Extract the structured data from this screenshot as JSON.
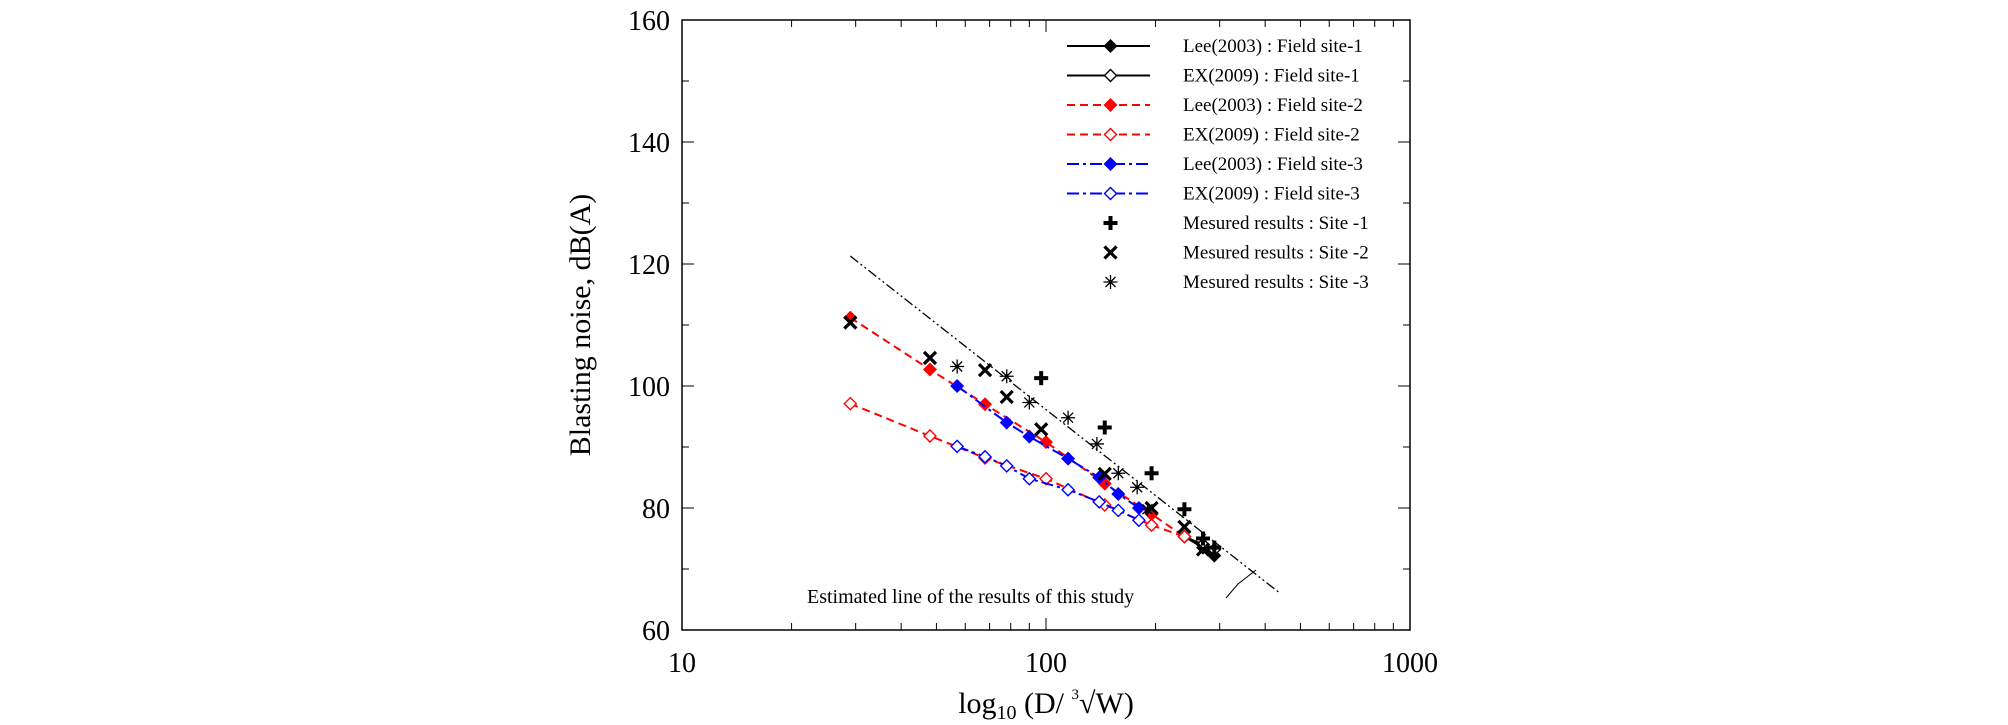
{
  "chart_data": {
    "type": "line",
    "xscale": "log",
    "xlim": [
      10,
      1000
    ],
    "ylim": [
      60,
      160
    ],
    "x_ticks": [
      "10",
      "100",
      "1000"
    ],
    "y_ticks": [
      "60",
      "80",
      "100",
      "120",
      "140",
      "160"
    ],
    "xlabel": {
      "prefix": "log",
      "subscript": "10",
      "body": " (D/ ",
      "root_index": "3",
      "root_sign": "√",
      "suffix": "W)"
    },
    "ylabel": "Blasting noise, dB(A)",
    "legend_position": "top-right",
    "series": [
      {
        "name": "Lee(2003) : Field site-1",
        "color": "#000000",
        "line": "solid",
        "marker": "diamond-filled",
        "x": [
          240,
          270,
          290
        ],
        "y": [
          75.3,
          73.5,
          72.2
        ]
      },
      {
        "name": "EX(2009) : Field site-1",
        "color": "#000000",
        "line": "solid",
        "marker": "diamond-open",
        "x": [
          240,
          270,
          290
        ],
        "y": [
          75.3,
          74.0,
          73.2
        ]
      },
      {
        "name": "Lee(2003) :  Field site-2",
        "color": "#ff0000",
        "line": "dashed",
        "marker": "diamond-filled",
        "x": [
          29,
          48,
          68,
          100,
          145,
          195,
          240
        ],
        "y": [
          111.2,
          102.7,
          97.0,
          90.8,
          84.0,
          79.0,
          75.3
        ]
      },
      {
        "name": "EX(2009) : Field site-2",
        "color": "#ff0000",
        "line": "dashed",
        "marker": "diamond-open",
        "x": [
          29,
          48,
          68,
          100,
          145,
          195,
          240
        ],
        "y": [
          97.1,
          91.8,
          88.2,
          84.8,
          80.5,
          77.2,
          75.3
        ]
      },
      {
        "name": "Lee(2003) :  Field site-3",
        "color": "#0000ff",
        "line": "dashdot",
        "marker": "diamond-filled",
        "x": [
          57,
          78,
          90,
          115,
          140,
          158,
          180
        ],
        "y": [
          100.0,
          94.0,
          91.7,
          88.1,
          85.0,
          82.3,
          80.0
        ]
      },
      {
        "name": "EX(2009) : Field site-3",
        "color": "#0000ff",
        "line": "dashdot",
        "marker": "diamond-open",
        "x": [
          57,
          68,
          78,
          90,
          115,
          140,
          158,
          180
        ],
        "y": [
          90.1,
          88.4,
          86.9,
          84.8,
          83.0,
          81.0,
          79.6,
          78.0
        ]
      },
      {
        "name": "Mesured results : Site -1",
        "color": "#000000",
        "line": "none",
        "marker": "plus",
        "x": [
          97,
          145,
          195,
          240,
          270,
          290
        ],
        "y": [
          101.3,
          93.2,
          85.7,
          79.8,
          75.0,
          73.5
        ]
      },
      {
        "name": "Mesured results : Site -2",
        "color": "#000000",
        "line": "none",
        "marker": "x",
        "x": [
          29,
          48,
          68,
          78,
          97,
          145,
          195,
          240,
          270
        ],
        "y": [
          110.4,
          104.6,
          102.6,
          98.2,
          92.9,
          85.6,
          80.0,
          76.9,
          73.2
        ]
      },
      {
        "name": "Mesured results : Site -3",
        "color": "#000000",
        "line": "none",
        "marker": "asterisk",
        "x": [
          57,
          78,
          90,
          115,
          138,
          158,
          178,
          190
        ],
        "y": [
          103.2,
          101.6,
          97.3,
          94.8,
          90.5,
          85.7,
          83.4,
          79.8
        ]
      }
    ],
    "estimated_line": {
      "label": "Estimated line of the results of this study",
      "x": [
        29,
        440
      ],
      "y": [
        121.3,
        66.0
      ],
      "color": "#000000",
      "line": "dashdotdot"
    }
  }
}
